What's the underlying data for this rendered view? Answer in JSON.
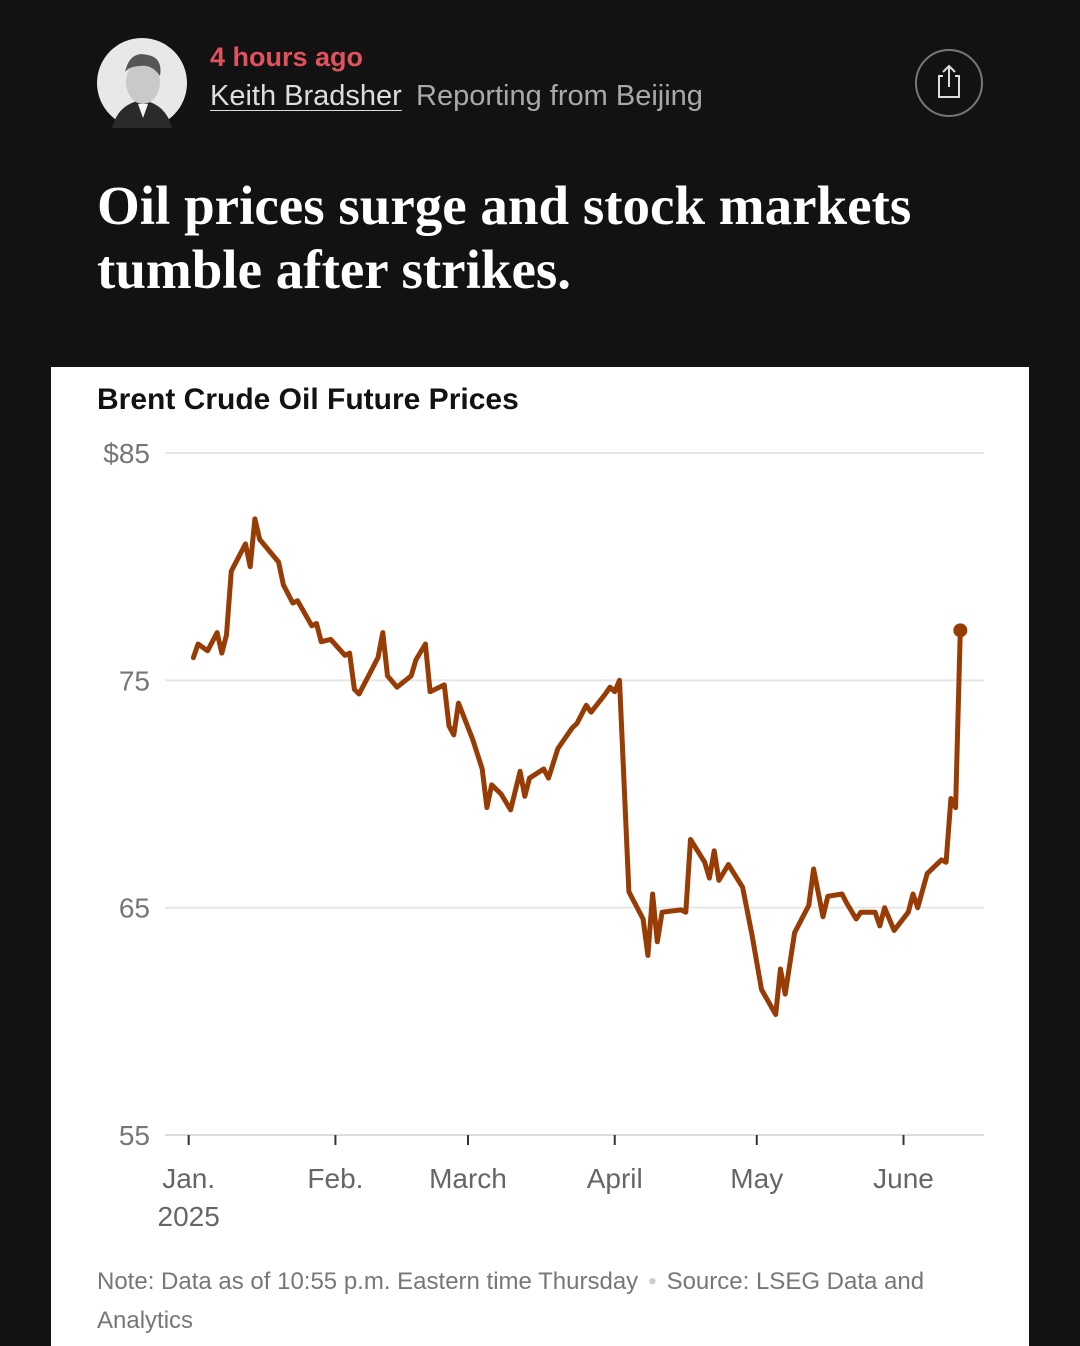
{
  "header": {
    "time": "4 hours ago",
    "author": "Keith Bradsher",
    "location": "Reporting from Beijing"
  },
  "headline": "Oil prices surge and stock markets tumble after strikes.",
  "chart_data": {
    "type": "line",
    "title": "Brent Crude Oil Future Prices",
    "x": [
      1,
      2,
      4,
      6,
      7,
      8,
      9,
      12,
      13,
      14,
      15,
      19,
      20,
      22,
      23,
      26,
      27,
      28,
      30,
      33,
      34,
      35,
      36,
      40,
      41,
      42,
      44,
      47,
      48,
      50,
      51,
      54,
      55,
      56,
      57,
      60,
      62,
      63,
      64,
      66,
      68,
      70,
      71,
      72,
      75,
      76,
      78,
      81,
      82,
      84,
      85,
      88,
      89,
      90,
      91,
      93,
      96,
      97,
      98,
      99,
      100,
      104,
      105,
      106,
      109,
      110,
      111,
      112,
      114,
      117,
      119,
      121,
      124,
      125,
      126,
      128,
      131,
      132,
      134,
      135,
      138,
      139,
      141,
      142,
      145,
      146,
      147,
      149,
      152,
      153,
      154,
      156,
      159,
      160,
      161,
      162,
      163
    ],
    "values": [
      76.0,
      76.6,
      76.3,
      77.1,
      76.2,
      77.0,
      79.8,
      81.0,
      80.0,
      82.1,
      81.2,
      80.2,
      79.2,
      78.4,
      78.5,
      77.4,
      77.5,
      76.7,
      76.8,
      76.1,
      76.2,
      74.6,
      74.4,
      76.0,
      77.1,
      75.2,
      74.7,
      75.2,
      75.9,
      76.6,
      74.5,
      74.8,
      73.0,
      72.6,
      74.0,
      72.4,
      71.1,
      69.4,
      70.4,
      70.0,
      69.3,
      71.0,
      69.9,
      70.7,
      71.1,
      70.7,
      72.0,
      72.9,
      73.1,
      73.9,
      73.6,
      74.4,
      74.7,
      74.5,
      75.0,
      65.7,
      64.5,
      62.9,
      65.6,
      63.5,
      64.8,
      64.9,
      64.8,
      68.0,
      67.0,
      66.3,
      67.5,
      66.2,
      66.9,
      65.9,
      63.8,
      61.4,
      60.3,
      62.3,
      61.2,
      63.9,
      65.1,
      66.7,
      64.6,
      65.5,
      65.6,
      65.2,
      64.5,
      64.8,
      64.8,
      64.2,
      65.0,
      64.0,
      64.8,
      65.6,
      65.0,
      66.5,
      67.1,
      67.0,
      69.8,
      69.4,
      77.2
    ],
    "color": "#973c05",
    "xlim": [
      -5,
      168
    ],
    "xticks": [
      {
        "value": 0,
        "label": "Jan.\n2025"
      },
      {
        "value": 31,
        "label": "Feb."
      },
      {
        "value": 59,
        "label": "March"
      },
      {
        "value": 90,
        "label": "April"
      },
      {
        "value": 120,
        "label": "May"
      },
      {
        "value": 151,
        "label": "June"
      }
    ],
    "ylim": [
      55,
      85
    ],
    "yticks": [
      {
        "value": 85,
        "label": "$85"
      },
      75,
      65,
      55
    ],
    "grid": true,
    "note": "Note: Data as of 10:55 p.m. Eastern time Thursday",
    "source": "Source: LSEG Data and Analytics"
  }
}
